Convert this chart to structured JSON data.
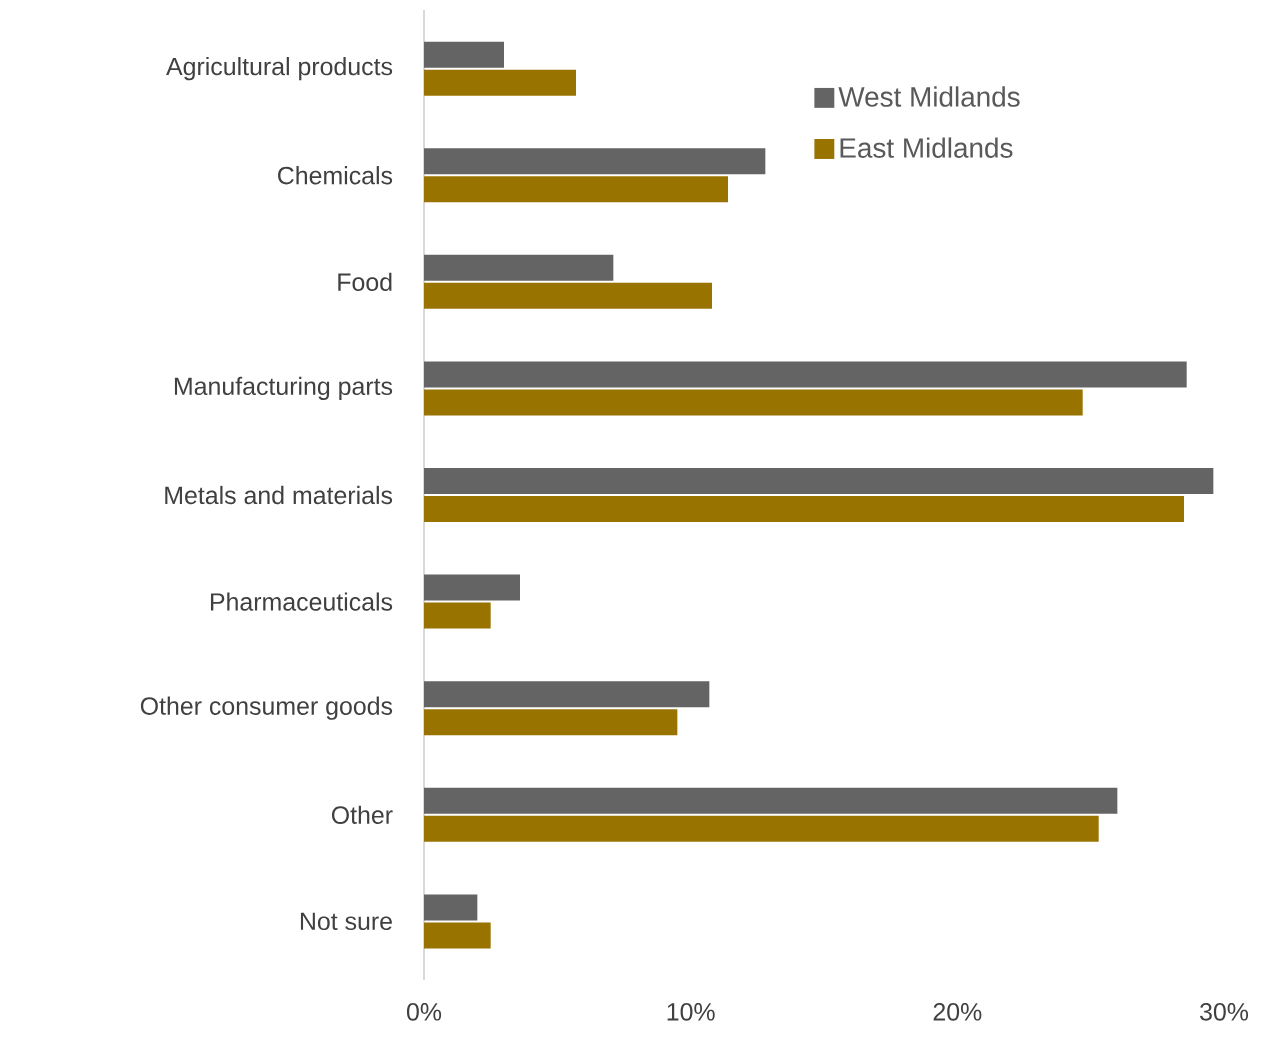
{
  "chart_data": {
    "type": "bar",
    "orientation": "horizontal",
    "categories": [
      "Agricultural products",
      "Chemicals",
      "Food",
      "Manufacturing parts",
      "Metals and materials",
      "Pharmaceuticals",
      "Other consumer goods",
      "Other",
      "Not sure"
    ],
    "series": [
      {
        "name": "West Midlands",
        "color": "#646464",
        "values": [
          3.0,
          12.8,
          7.1,
          28.6,
          29.6,
          3.6,
          10.7,
          26.0,
          2.0
        ]
      },
      {
        "name": "East Midlands",
        "color": "#997300",
        "values": [
          5.7,
          11.4,
          10.8,
          24.7,
          28.5,
          2.5,
          9.5,
          25.3,
          2.5
        ]
      }
    ],
    "xlim": [
      0,
      30
    ],
    "xticks": [
      {
        "value": 0,
        "label": "0%"
      },
      {
        "value": 10,
        "label": "10%"
      },
      {
        "value": 20,
        "label": "20%"
      },
      {
        "value": 30,
        "label": "30%"
      }
    ],
    "legend": "top right"
  }
}
